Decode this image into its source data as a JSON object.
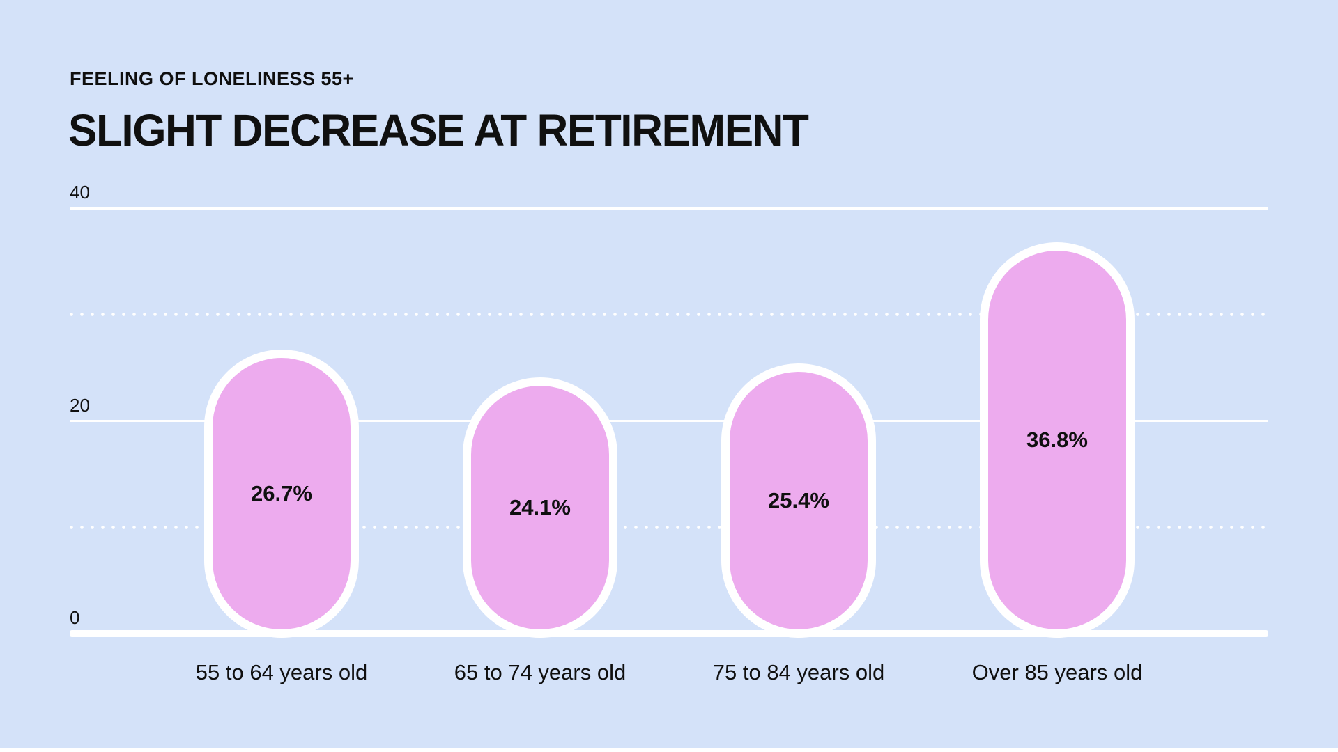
{
  "header": {
    "subtitle": "FEELING OF LONELINESS 55+",
    "title": "SLIGHT DECREASE AT RETIREMENT"
  },
  "chart_data": {
    "type": "bar",
    "title": "SLIGHT DECREASE AT RETIREMENT",
    "subtitle": "FEELING OF LONELINESS 55+",
    "categories": [
      "55 to 64 years old",
      "65 to 74 years old",
      "75 to 84 years old",
      "Over 85 years old"
    ],
    "values": [
      26.7,
      24.1,
      25.4,
      36.8
    ],
    "value_labels": [
      "26.7%",
      "24.1%",
      "25.4%",
      "36.8%"
    ],
    "xlabel": "",
    "ylabel": "",
    "ylim": [
      0,
      40
    ],
    "ytick_values": [
      40,
      20,
      0
    ],
    "ytick_labels": [
      "40",
      "20",
      "0"
    ],
    "solid_gridlines": [
      40,
      20
    ],
    "dotted_gridlines": [
      30,
      10
    ],
    "grid": true,
    "legend": false,
    "colors": {
      "background": "#d4e2f9",
      "bar_fill": "#edabee",
      "bar_border": "#ffffff",
      "gridline": "#ffffff",
      "text": "#0f0f0f"
    }
  }
}
